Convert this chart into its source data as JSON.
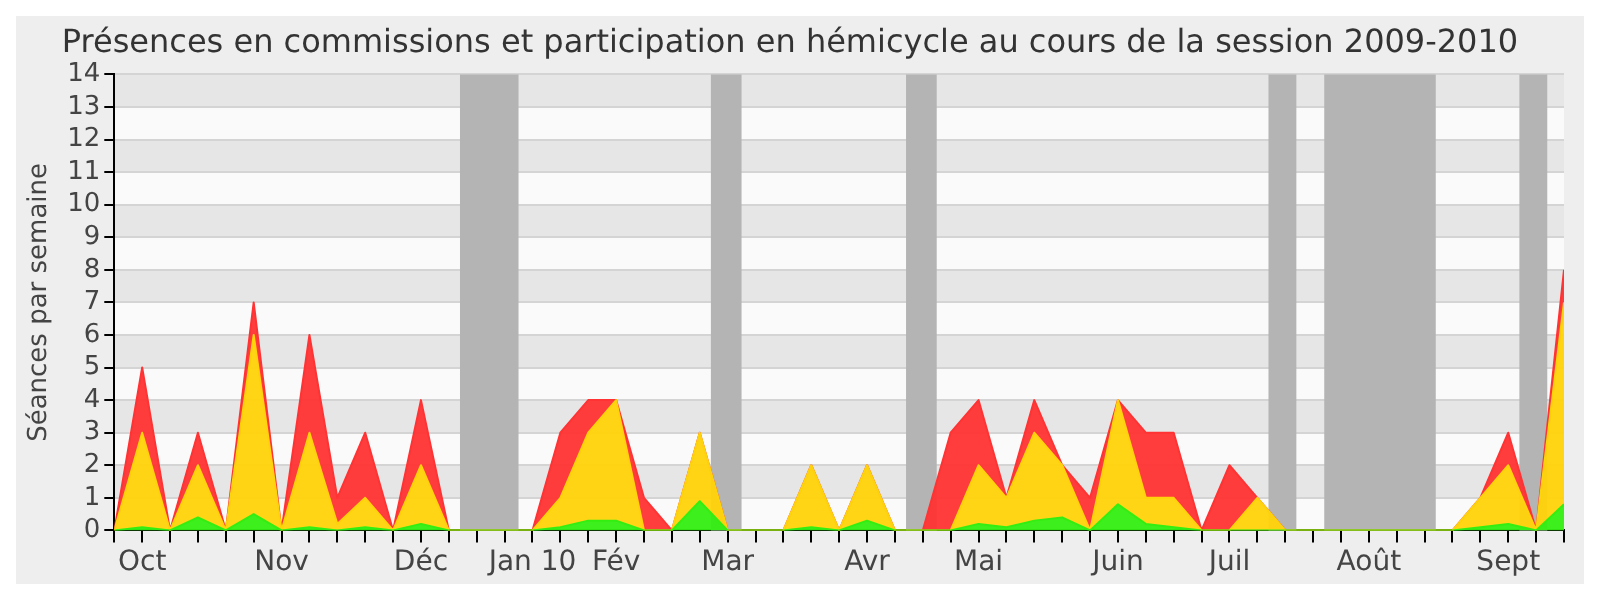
{
  "chart_data": {
    "type": "area",
    "title": "Présences en commissions et participation en hémicycle au cours de la session 2009-2010",
    "ylabel": "Séances par semaine",
    "categories": [
      null,
      "Oct",
      null,
      null,
      null,
      null,
      "Nov",
      null,
      null,
      null,
      null,
      "Déc",
      null,
      null,
      null,
      "Jan 10",
      null,
      null,
      "Fév",
      null,
      null,
      null,
      "Mar",
      null,
      null,
      null,
      null,
      "Avr",
      null,
      null,
      null,
      "Mai",
      null,
      null,
      null,
      null,
      "Juin",
      null,
      null,
      null,
      "Juil",
      null,
      null,
      null,
      null,
      "Août",
      null,
      null,
      null,
      null,
      "Sept",
      null,
      null
    ],
    "ylim": [
      0,
      14
    ],
    "yticks": [
      0,
      1,
      2,
      3,
      4,
      5,
      6,
      7,
      8,
      9,
      10,
      11,
      12,
      13,
      14
    ],
    "stacked": true,
    "grid": "y",
    "series": [
      {
        "color": "#33ee11",
        "values": [
          0,
          0.1,
          0,
          0.4,
          0,
          0.5,
          0,
          0.1,
          0,
          0.1,
          0,
          0.2,
          0,
          0,
          0,
          0,
          0.1,
          0.3,
          0.3,
          0,
          0,
          0.9,
          0,
          0,
          0,
          0.1,
          0,
          0.3,
          0,
          0,
          0,
          0.2,
          0.1,
          0.3,
          0.4,
          0,
          0.8,
          0.2,
          0.1,
          0,
          0,
          0,
          0,
          0,
          0,
          0,
          0,
          0,
          0,
          0.1,
          0.2,
          0,
          0.8
        ]
      },
      {
        "color": "#ffd30a",
        "values": [
          0,
          2.9,
          0,
          1.6,
          0,
          5.5,
          0,
          2.9,
          0.2,
          0.9,
          0,
          1.8,
          0,
          0,
          0,
          0,
          0.9,
          2.7,
          3.7,
          0,
          0,
          2.1,
          0,
          0,
          0,
          1.9,
          0,
          1.7,
          0,
          0,
          0,
          1.8,
          0.9,
          2.7,
          1.6,
          0,
          3.2,
          0.8,
          0.9,
          0,
          0,
          1,
          0,
          0,
          0,
          0,
          0,
          0,
          0,
          0.9,
          1.8,
          0,
          6.2
        ]
      },
      {
        "color": "#ff3333",
        "values": [
          0,
          2,
          0,
          1,
          0,
          1,
          0,
          3,
          0.8,
          2,
          0,
          2,
          0,
          0,
          0,
          0,
          2,
          1,
          0,
          1,
          0,
          0,
          0,
          0,
          0,
          0,
          0,
          0,
          0,
          0,
          3,
          2,
          0,
          1,
          0,
          1,
          0,
          2,
          2,
          0,
          2,
          0,
          0,
          0,
          0,
          0,
          0,
          0,
          0,
          0,
          1,
          0,
          1
        ]
      }
    ]
  }
}
